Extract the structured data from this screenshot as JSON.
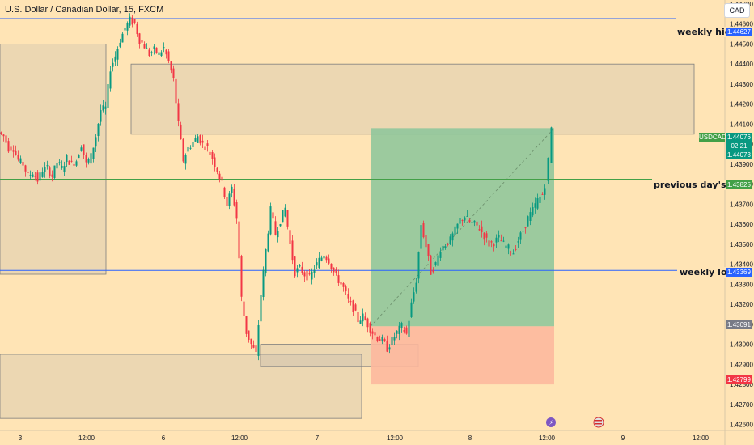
{
  "header": {
    "symbol_title": "U.S. Dollar / Canadian Dollar, 15, FXCM",
    "currency_button": "CAD"
  },
  "colors": {
    "background": "#ffe4b5",
    "up": "#089981",
    "down": "#f23645",
    "blue_line": "#2962ff",
    "green_line": "#43a047",
    "target_zone": "#8bc59a",
    "stop_zone": "#fdb89d"
  },
  "chart_data": {
    "type": "candlestick",
    "x_ticks": [
      "3",
      "12:00",
      "6",
      "12:00",
      "7",
      "12:00",
      "8",
      "12:00",
      "9",
      "12:00"
    ],
    "y_ticks": [
      "1.44700",
      "1.44600",
      "1.44500",
      "1.44400",
      "1.44300",
      "1.44200",
      "1.44100",
      "1.44000",
      "1.43900",
      "1.43800",
      "1.43700",
      "1.43600",
      "1.43500",
      "1.43400",
      "1.43300",
      "1.43200",
      "1.43100",
      "1.43000",
      "1.42900",
      "1.42800",
      "1.42700",
      "1.42600"
    ],
    "ylim": [
      1.4257,
      1.4472
    ],
    "annotations": [
      {
        "label": "weekly high",
        "price": "1.44627"
      },
      {
        "label": "previous day's low",
        "price": "1.43825"
      },
      {
        "label": "weekly low",
        "price": "1.43369"
      }
    ],
    "price_tags": {
      "symbol": "USDCAD",
      "last": "1.44076",
      "countdown": "02:21",
      "bid": "1.44073",
      "position_stop_line": "1.43091",
      "position_stop": "1.42799"
    },
    "position": {
      "entry": 1.4309,
      "target": 1.4408,
      "stop": 1.428
    },
    "candles_ohlc_note": "",
    "path": [
      [
        0,
        1.4406
      ],
      [
        6,
        1.4404
      ],
      [
        12,
        1.4398
      ],
      [
        18,
        1.4398
      ],
      [
        24,
        1.4392
      ],
      [
        30,
        1.439
      ],
      [
        36,
        1.4384
      ],
      [
        42,
        1.4386
      ],
      [
        48,
        1.4382
      ],
      [
        54,
        1.4387
      ],
      [
        60,
        1.4388
      ],
      [
        66,
        1.4384
      ],
      [
        72,
        1.4391
      ],
      [
        78,
        1.4388
      ],
      [
        84,
        1.4393
      ],
      [
        90,
        1.439
      ],
      [
        96,
        1.4392
      ],
      [
        102,
        1.44
      ],
      [
        108,
        1.439
      ],
      [
        114,
        1.4394
      ],
      [
        120,
        1.4404
      ],
      [
        126,
        1.4417
      ],
      [
        132,
        1.4418
      ],
      [
        138,
        1.4438
      ],
      [
        144,
        1.4444
      ],
      [
        150,
        1.4452
      ],
      [
        156,
        1.4458
      ],
      [
        162,
        1.4462
      ],
      [
        168,
        1.446
      ],
      [
        174,
        1.4452
      ],
      [
        180,
        1.4449
      ],
      [
        186,
        1.4445
      ],
      [
        192,
        1.4447
      ],
      [
        198,
        1.4445
      ],
      [
        204,
        1.4448
      ],
      [
        210,
        1.4441
      ],
      [
        216,
        1.4432
      ],
      [
        222,
        1.441
      ],
      [
        228,
        1.4392
      ],
      [
        234,
        1.4398
      ],
      [
        240,
        1.4401
      ],
      [
        246,
        1.4404
      ],
      [
        252,
        1.44
      ],
      [
        258,
        1.4398
      ],
      [
        264,
        1.4393
      ],
      [
        270,
        1.4387
      ],
      [
        276,
        1.438
      ],
      [
        282,
        1.437
      ],
      [
        288,
        1.4378
      ],
      [
        294,
        1.4363
      ],
      [
        300,
        1.4323
      ],
      [
        306,
        1.4306
      ],
      [
        312,
        1.43
      ],
      [
        318,
        1.4295
      ],
      [
        324,
        1.4325
      ],
      [
        330,
        1.4347
      ],
      [
        336,
        1.4367
      ],
      [
        342,
        1.4355
      ],
      [
        348,
        1.4362
      ],
      [
        354,
        1.4368
      ],
      [
        360,
        1.435
      ],
      [
        366,
        1.4336
      ],
      [
        372,
        1.4338
      ],
      [
        378,
        1.4335
      ],
      [
        384,
        1.4333
      ],
      [
        390,
        1.4338
      ],
      [
        396,
        1.4342
      ],
      [
        402,
        1.4345
      ],
      [
        408,
        1.4342
      ],
      [
        414,
        1.4336
      ],
      [
        420,
        1.4332
      ],
      [
        426,
        1.4328
      ],
      [
        432,
        1.4322
      ],
      [
        438,
        1.4318
      ],
      [
        444,
        1.4312
      ],
      [
        450,
        1.4314
      ],
      [
        456,
        1.431
      ],
      [
        462,
        1.4306
      ],
      [
        468,
        1.4303
      ],
      [
        474,
        1.4302
      ],
      [
        480,
        1.4298
      ],
      [
        486,
        1.4302
      ],
      [
        492,
        1.4306
      ],
      [
        498,
        1.4309
      ],
      [
        504,
        1.4305
      ],
      [
        510,
        1.432
      ],
      [
        516,
        1.4332
      ],
      [
        522,
        1.436
      ],
      [
        528,
        1.4349
      ],
      [
        534,
        1.4336
      ],
      [
        540,
        1.434
      ],
      [
        546,
        1.4348
      ],
      [
        552,
        1.435
      ],
      [
        558,
        1.4352
      ],
      [
        564,
        1.4357
      ],
      [
        570,
        1.4362
      ],
      [
        576,
        1.4364
      ],
      [
        582,
        1.4361
      ],
      [
        588,
        1.436
      ],
      [
        594,
        1.4358
      ],
      [
        600,
        1.4354
      ],
      [
        606,
        1.435
      ],
      [
        612,
        1.4351
      ],
      [
        618,
        1.4353
      ],
      [
        624,
        1.435
      ],
      [
        630,
        1.4348
      ],
      [
        636,
        1.4346
      ],
      [
        642,
        1.4352
      ],
      [
        648,
        1.4357
      ],
      [
        654,
        1.4363
      ],
      [
        660,
        1.4367
      ],
      [
        666,
        1.4372
      ],
      [
        672,
        1.4375
      ],
      [
        676,
        1.438
      ],
      [
        680,
        1.4392
      ],
      [
        682,
        1.4408
      ]
    ]
  }
}
